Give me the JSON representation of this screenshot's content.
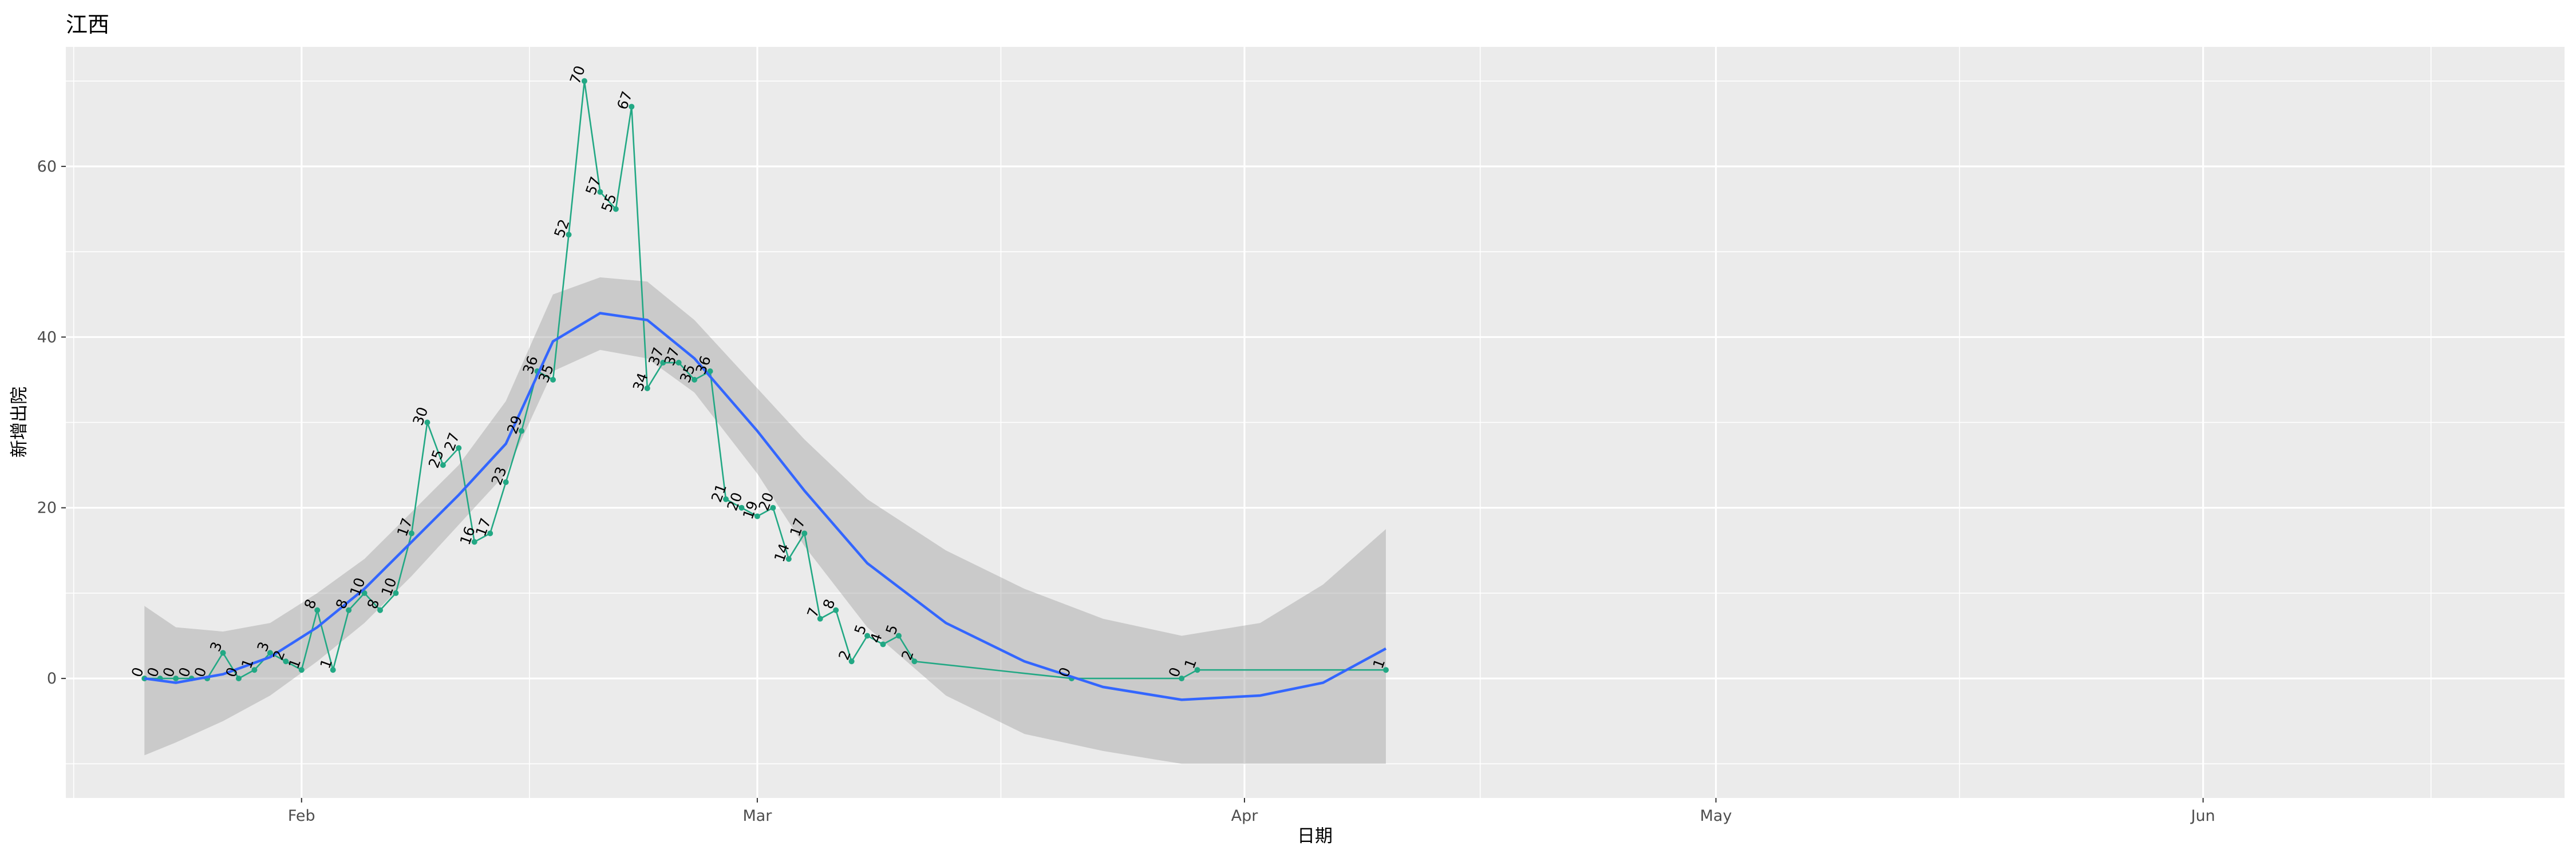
{
  "chart_data": {
    "type": "line",
    "title": "江西",
    "xlabel": "日期",
    "ylabel": "新增出院",
    "x_ticks": [
      {
        "date": "2020-02-01",
        "label": "Feb"
      },
      {
        "date": "2020-03-01",
        "label": "Mar"
      },
      {
        "date": "2020-04-01",
        "label": "Apr"
      },
      {
        "date": "2020-05-01",
        "label": "May"
      },
      {
        "date": "2020-06-01",
        "label": "Jun"
      }
    ],
    "y_ticks": [
      0,
      20,
      40,
      60
    ],
    "xlim": [
      "2020-01-17",
      "2020-06-24"
    ],
    "ylim": [
      -14,
      74
    ],
    "grid": true,
    "colors": {
      "panel": "#ebebeb",
      "grid": "#ffffff",
      "line": "#22a884",
      "smooth": "#3366ff",
      "ribbon": "#999999"
    },
    "series": [
      {
        "x": [
          "2020-01-22",
          "2020-01-23",
          "2020-01-24",
          "2020-01-25",
          "2020-01-26",
          "2020-01-27",
          "2020-01-28",
          "2020-01-29",
          "2020-01-30",
          "2020-01-31",
          "2020-02-01",
          "2020-02-02",
          "2020-02-03",
          "2020-02-04",
          "2020-02-05",
          "2020-02-06",
          "2020-02-07",
          "2020-02-08",
          "2020-02-09",
          "2020-02-10",
          "2020-02-11",
          "2020-02-12",
          "2020-02-13",
          "2020-02-14",
          "2020-02-15",
          "2020-02-16",
          "2020-02-17",
          "2020-02-18",
          "2020-02-19",
          "2020-02-20",
          "2020-02-21",
          "2020-02-22",
          "2020-02-23",
          "2020-02-24",
          "2020-02-25",
          "2020-02-26",
          "2020-02-27",
          "2020-02-28",
          "2020-02-29",
          "2020-03-01",
          "2020-03-02",
          "2020-03-03",
          "2020-03-04",
          "2020-03-05",
          "2020-03-06",
          "2020-03-07",
          "2020-03-08",
          "2020-03-09",
          "2020-03-10",
          "2020-03-11",
          "2020-03-21",
          "2020-03-28",
          "2020-03-29",
          "2020-04-10"
        ],
        "values": [
          0,
          0,
          0,
          0,
          0,
          3,
          0,
          1,
          3,
          2,
          1,
          8,
          1,
          8,
          10,
          8,
          10,
          17,
          30,
          25,
          27,
          16,
          17,
          23,
          29,
          36,
          35,
          52,
          70,
          57,
          55,
          67,
          34,
          37,
          37,
          35,
          36,
          21,
          20,
          19,
          20,
          14,
          17,
          7,
          8,
          2,
          5,
          4,
          5,
          2,
          0,
          0,
          1,
          1
        ]
      }
    ],
    "smooth": {
      "x": [
        "2020-01-22",
        "2020-01-24",
        "2020-01-27",
        "2020-01-30",
        "2020-02-02",
        "2020-02-05",
        "2020-02-08",
        "2020-02-11",
        "2020-02-14",
        "2020-02-17",
        "2020-02-20",
        "2020-02-23",
        "2020-02-26",
        "2020-03-01",
        "2020-03-04",
        "2020-03-08",
        "2020-03-13",
        "2020-03-18",
        "2020-03-23",
        "2020-03-28",
        "2020-04-02",
        "2020-04-06",
        "2020-04-10"
      ],
      "fit": [
        0,
        -0.5,
        0.5,
        2.5,
        6,
        10.5,
        16,
        21.5,
        27.5,
        39.5,
        42.8,
        42,
        37.5,
        29,
        22,
        13.5,
        6.5,
        2,
        -1,
        -2.5,
        -2,
        -0.5,
        3.5
      ],
      "lower": [
        -9,
        -7.5,
        -5,
        -2,
        2,
        6.5,
        12,
        18,
        24,
        36,
        38.5,
        37.5,
        33.5,
        24,
        15.5,
        6,
        -2,
        -6.5,
        -8.5,
        -10,
        -10,
        -10,
        -10
      ],
      "upper": [
        8.5,
        6,
        5.5,
        6.5,
        10,
        14,
        19.5,
        25,
        32.5,
        45,
        47,
        46.5,
        42,
        34,
        28,
        21,
        15,
        10.5,
        7,
        5,
        6.5,
        11,
        17.5
      ]
    }
  }
}
